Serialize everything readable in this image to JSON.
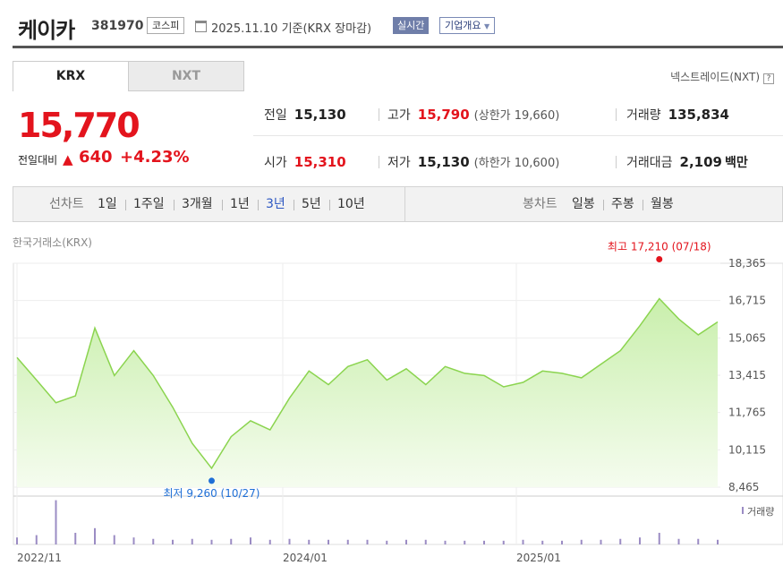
{
  "header": {
    "name": "케이카",
    "code": "381970",
    "market": "코스피",
    "date": "2025.11.10 기준(KRX 장마감)",
    "realtime": "실시간",
    "company_info": "기업개요"
  },
  "tabs": {
    "krx": "KRX",
    "nxt": "NXT"
  },
  "nxt_link": "넥스트레이드(NXT)",
  "quote": {
    "price": "15,770",
    "change_label": "전일대비",
    "change_arrow": "▲",
    "change_amount": "640",
    "change_pct": "+4.23%"
  },
  "stats": {
    "prev_close": {
      "label": "전일",
      "value": "15,130"
    },
    "high": {
      "label": "고가",
      "value": "15,790",
      "sub": "(상한가 19,660)"
    },
    "volume": {
      "label": "거래량",
      "value": "135,834"
    },
    "open": {
      "label": "시가",
      "value": "15,310"
    },
    "low": {
      "label": "저가",
      "value": "15,130",
      "sub": "(하한가 10,600)"
    },
    "trade_value": {
      "label": "거래대금",
      "value": "2,109",
      "unit": "백만"
    }
  },
  "periods": {
    "line_label": "선차트",
    "line_items": [
      "1일",
      "1주일",
      "3개월",
      "1년",
      "3년",
      "5년",
      "10년"
    ],
    "selected": "3년",
    "candle_label": "봉차트",
    "candle_items": [
      "일봉",
      "주봉",
      "월봉"
    ]
  },
  "source": "한국거래소(KRX)",
  "colors": {
    "up": "#e3141d",
    "line": "#8bd44f",
    "volume": "#9b8cc4",
    "selected": "#2d57c2"
  },
  "chart_data": {
    "type": "area",
    "y_ticks": [
      "18,365",
      "16,715",
      "15,065",
      "13,415",
      "11,765",
      "10,115",
      "8,465"
    ],
    "ylim": [
      8465,
      18365
    ],
    "x_ticks": [
      "2022/11",
      "2024/01",
      "2025/01"
    ],
    "annotations": {
      "high": "최고 17,210 (07/18)",
      "low": "최저 9,260 (10/27)"
    },
    "volume_label": "거래량",
    "x": [
      "2022/11",
      "2022/12",
      "2023/01",
      "2023/02",
      "2023/03",
      "2023/04",
      "2023/05",
      "2023/06",
      "2023/07",
      "2023/08",
      "2023/09",
      "2023/10",
      "2023/11",
      "2023/12",
      "2024/01",
      "2024/02",
      "2024/03",
      "2024/04",
      "2024/05",
      "2024/06",
      "2024/07",
      "2024/08",
      "2024/09",
      "2024/10",
      "2024/11",
      "2024/12",
      "2025/01",
      "2025/02",
      "2025/03",
      "2025/04",
      "2025/05",
      "2025/06",
      "2025/07",
      "2025/08",
      "2025/09",
      "2025/10",
      "2025/11"
    ],
    "values": [
      14200,
      13200,
      12200,
      12500,
      15500,
      13400,
      14500,
      13400,
      12000,
      10400,
      9300,
      10700,
      11400,
      11000,
      12400,
      13600,
      13000,
      13800,
      14100,
      13200,
      13700,
      13000,
      13800,
      13500,
      13400,
      12900,
      13100,
      13600,
      13500,
      13300,
      13900,
      14500,
      15600,
      16800,
      15900,
      15200,
      15770
    ],
    "volume": [
      0.15,
      0.2,
      0.95,
      0.25,
      0.35,
      0.2,
      0.15,
      0.12,
      0.1,
      0.12,
      0.1,
      0.12,
      0.15,
      0.1,
      0.12,
      0.1,
      0.1,
      0.1,
      0.1,
      0.08,
      0.1,
      0.1,
      0.08,
      0.08,
      0.08,
      0.08,
      0.1,
      0.08,
      0.08,
      0.1,
      0.1,
      0.12,
      0.15,
      0.25,
      0.12,
      0.12,
      0.1
    ]
  }
}
